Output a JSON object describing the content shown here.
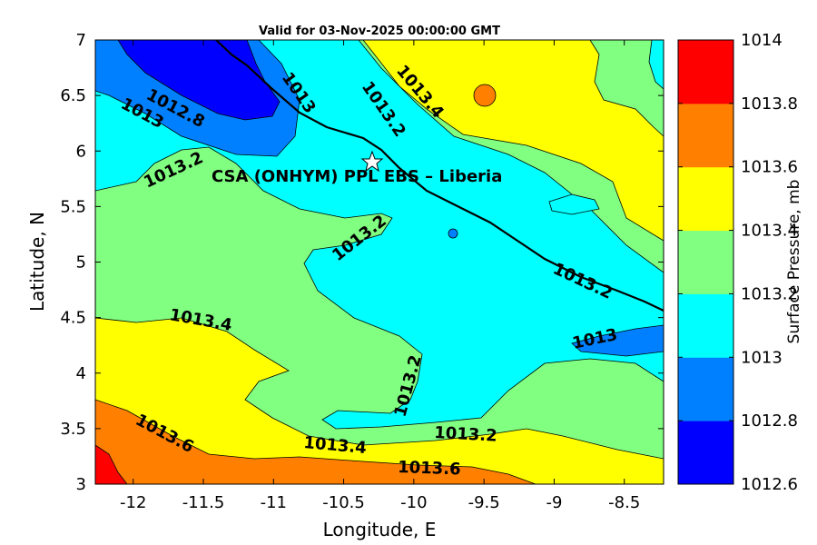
{
  "chart_data": {
    "type": "heatmap",
    "subtype": "filled-contour map",
    "title": "Valid for 03-Nov-2025 00:00:00 GMT",
    "xlabel": "Longitude, E",
    "ylabel": "Latitude, N",
    "xlim": [
      -12.27,
      -8.22
    ],
    "ylim": [
      3,
      7
    ],
    "xticks": [
      -12,
      -11.5,
      -11,
      -10.5,
      -10,
      -9.5,
      -9,
      -8.5
    ],
    "yticks": [
      3,
      3.5,
      4,
      4.5,
      5,
      5.5,
      6,
      6.5,
      7
    ],
    "annotation": "CSA (ONHYM) PPL EBS  – Liberia",
    "marker": {
      "type": "star",
      "lon": -10.3,
      "lat": 5.92
    },
    "colorbar": {
      "label": "Surface Pressure, mb",
      "ticks": [
        1012.6,
        1012.8,
        1013,
        1013.2,
        1013.4,
        1013.6,
        1013.8,
        1014
      ],
      "colors": [
        "#0000ff",
        "#0080ff",
        "#00ffff",
        "#80ff80",
        "#ffff00",
        "#ff8000",
        "#ff0000",
        "#800000"
      ]
    },
    "contour_labels": [
      "1012.8",
      "1013",
      "1013",
      "1013.2",
      "1013.4",
      "1013.2",
      "1013.2",
      "1013.2",
      "1013.4",
      "1013",
      "1013.2",
      "1013.2",
      "1013.6",
      "1013.4",
      "1013.6"
    ]
  }
}
